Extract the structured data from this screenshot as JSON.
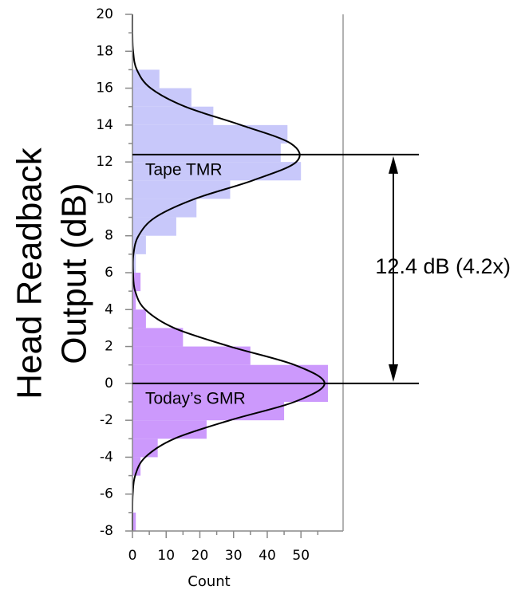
{
  "chart_data": {
    "type": "histogram",
    "orientation": "horizontal",
    "xlabel": "Count",
    "ylabel": [
      "Head Readback",
      "Output (dB)"
    ],
    "xlim": [
      0,
      62.5
    ],
    "xticks": [
      0,
      10,
      20,
      30,
      40,
      50
    ],
    "xminor_ticks": [
      5,
      15,
      25,
      35,
      45,
      55
    ],
    "ylim": [
      -8,
      20
    ],
    "yticks": [
      20,
      18,
      16,
      14,
      12,
      10,
      8,
      6,
      4,
      2,
      0,
      -2,
      -4,
      -6,
      -8
    ],
    "yminor_ticks": [
      19,
      17,
      15,
      13,
      11,
      9,
      7,
      5,
      3,
      1,
      -1,
      -3,
      -5,
      -7
    ],
    "bins": [
      -8,
      -7,
      -6,
      -5,
      -4,
      -3,
      -2,
      -1,
      0,
      1,
      2,
      3,
      4,
      5,
      6,
      7,
      8,
      9,
      10,
      11,
      12,
      13,
      14,
      15,
      16,
      17
    ],
    "series": [
      {
        "name": "Tape TMR",
        "color": "#c8c8fa",
        "values": [
          0,
          0,
          0,
          0,
          0,
          0,
          0,
          0,
          0,
          0,
          0,
          0,
          0,
          0,
          1,
          4,
          13,
          19,
          29,
          50,
          44,
          46,
          24,
          17.5,
          8
        ]
      },
      {
        "name": "Today’s GMR",
        "color": "#cc99fc",
        "values": [
          1,
          0,
          0,
          2.4,
          7.5,
          22,
          45,
          58,
          58,
          35,
          15,
          4,
          1,
          2.4,
          0,
          0,
          0,
          0,
          0,
          0,
          0,
          0,
          0,
          0,
          0
        ]
      }
    ],
    "curve": {
      "color": "#000000",
      "y": [
        -8,
        -7,
        -6,
        -5,
        -4,
        -3,
        -2,
        -1,
        0,
        1,
        2,
        3,
        4,
        5,
        6,
        7,
        8,
        9,
        10,
        11,
        12,
        13,
        14,
        15,
        16,
        17,
        18,
        19,
        20
      ],
      "values": [
        0,
        0,
        0.1,
        0.8,
        3.8,
        12.4,
        28.9,
        48.1,
        57,
        48.1,
        28.9,
        12.4,
        3.8,
        0.8,
        0.2,
        0.3,
        1.8,
        6.8,
        18.5,
        35.7,
        48.6,
        47,
        32.2,
        15.6,
        5.4,
        1.3,
        0.2,
        0,
        0
      ]
    },
    "reference_lines": [
      12.4,
      0
    ],
    "annotation": "12.4 dB (4.2x)"
  }
}
